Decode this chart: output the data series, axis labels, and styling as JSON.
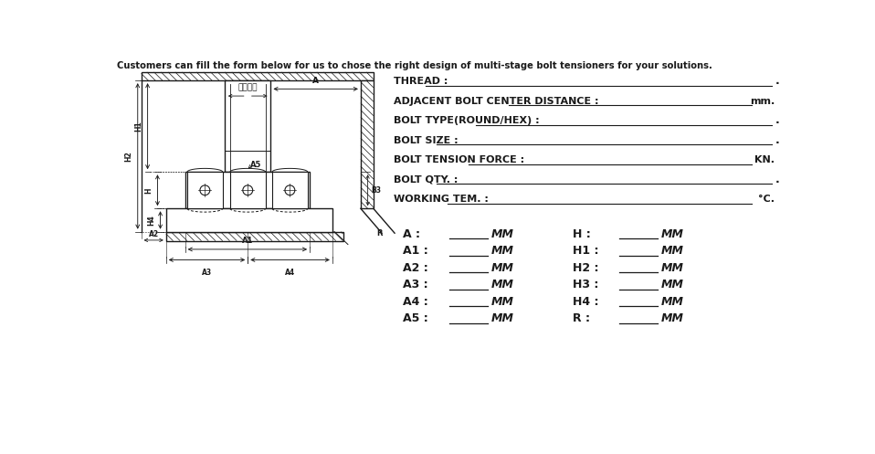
{
  "bg_color": "#ffffff",
  "line_color": "#1a1a1a",
  "header_text": "Customers can fill the form below for us to chose the right design of multi-stage bolt tensioners for your solutions.",
  "form_fields": [
    {
      "label": "THREAD :",
      "right_text": "",
      "unit": "."
    },
    {
      "label": "ADJACENT BOLT CENTER DISTANCE :",
      "right_text": "mm.",
      "unit": "mm."
    },
    {
      "label": "BOLT TYPE(ROUND/HEX) :",
      "right_text": "",
      "unit": "."
    },
    {
      "label": "BOLT SIZE :",
      "right_text": "",
      "unit": "."
    },
    {
      "label": "BOLT TENSION FORCE :",
      "right_text": "KN.",
      "unit": "KN."
    },
    {
      "label": "BOLT QTY. :",
      "right_text": "",
      "unit": "."
    },
    {
      "label": "WORKING TEM. :",
      "right_text": "°C.",
      "unit": "°C."
    }
  ],
  "dim_left": [
    "A",
    "A1",
    "A2",
    "A3",
    "A4",
    "A5"
  ],
  "dim_right": [
    "H",
    "H1",
    "H2",
    "H3",
    "H4",
    "R"
  ],
  "chinese_label": "螺纹规格"
}
